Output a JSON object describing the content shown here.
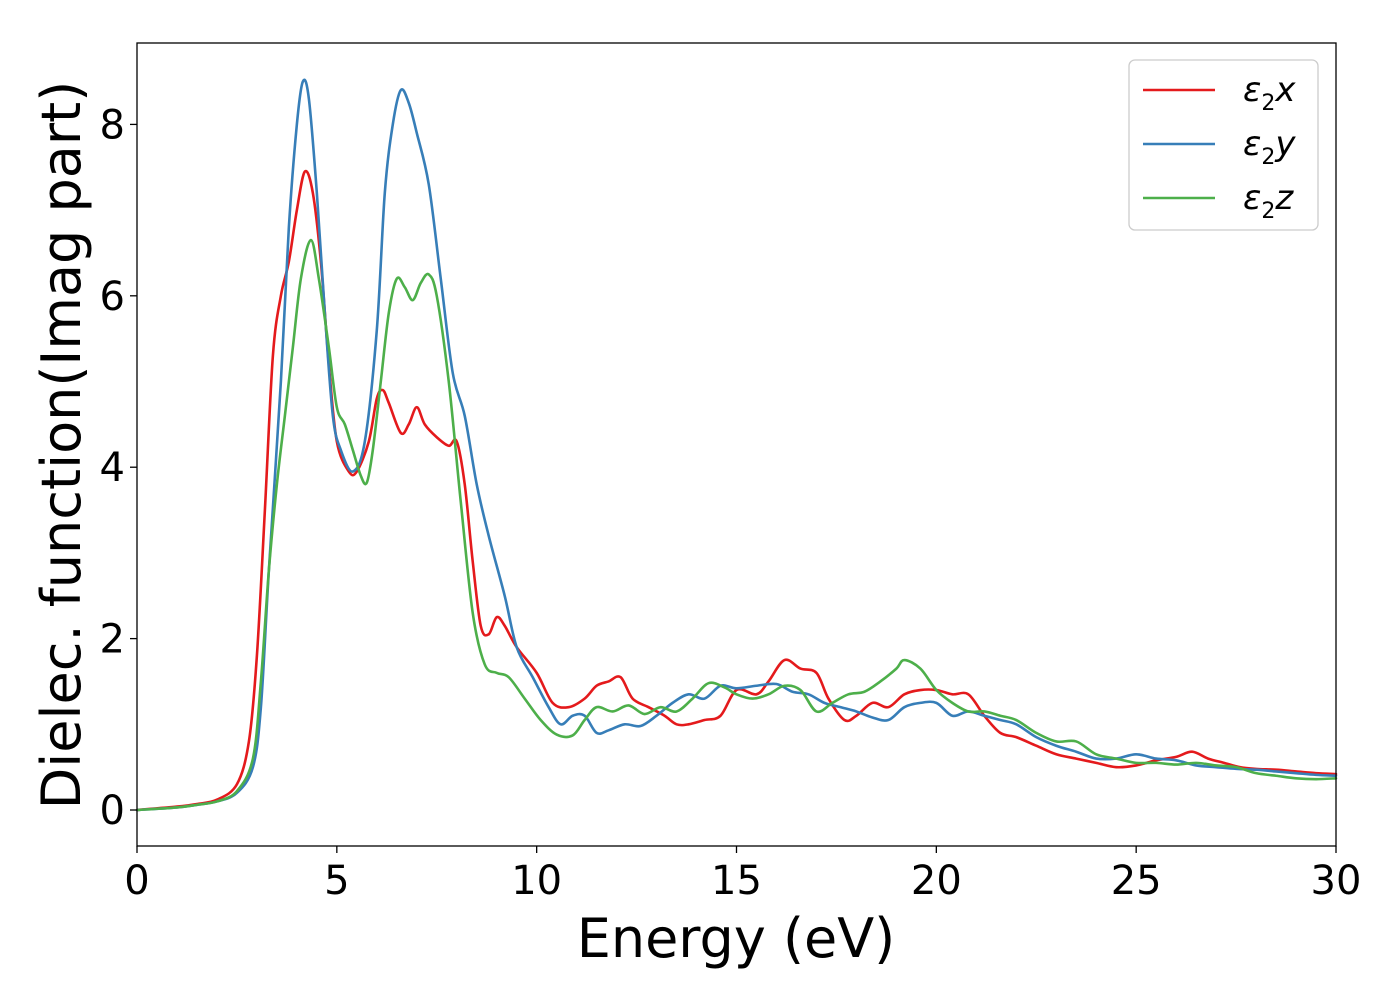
{
  "chart_data": {
    "type": "line",
    "xlabel": "Energy (eV)",
    "ylabel": "Dielec. function(Imag part)",
    "xlim": [
      0,
      30
    ],
    "ylim": [
      -0.42,
      8.95
    ],
    "xticks": [
      0,
      5,
      10,
      15,
      20,
      25,
      30
    ],
    "yticks": [
      0,
      2,
      4,
      6,
      8
    ],
    "grid": false,
    "legend_position": "top-right",
    "series": [
      {
        "name": "x",
        "label_base": "ε",
        "label_sub": "2",
        "label_var": "x",
        "color": "#e41a1c",
        "points": [
          [
            0,
            0
          ],
          [
            1,
            0.04
          ],
          [
            1.5,
            0.07
          ],
          [
            2,
            0.12
          ],
          [
            2.5,
            0.3
          ],
          [
            2.8,
            0.8
          ],
          [
            3.0,
            1.8
          ],
          [
            3.2,
            3.5
          ],
          [
            3.4,
            5.3
          ],
          [
            3.6,
            6.0
          ],
          [
            3.8,
            6.4
          ],
          [
            4.0,
            7.0
          ],
          [
            4.2,
            7.45
          ],
          [
            4.4,
            7.2
          ],
          [
            4.6,
            6.4
          ],
          [
            4.8,
            5.2
          ],
          [
            5.0,
            4.3
          ],
          [
            5.3,
            3.95
          ],
          [
            5.5,
            3.95
          ],
          [
            5.8,
            4.3
          ],
          [
            6.0,
            4.8
          ],
          [
            6.15,
            4.9
          ],
          [
            6.3,
            4.75
          ],
          [
            6.6,
            4.4
          ],
          [
            6.8,
            4.5
          ],
          [
            7.0,
            4.7
          ],
          [
            7.2,
            4.5
          ],
          [
            7.5,
            4.35
          ],
          [
            7.8,
            4.25
          ],
          [
            8.0,
            4.3
          ],
          [
            8.2,
            3.8
          ],
          [
            8.4,
            2.9
          ],
          [
            8.6,
            2.15
          ],
          [
            8.8,
            2.05
          ],
          [
            9.0,
            2.25
          ],
          [
            9.2,
            2.15
          ],
          [
            9.5,
            1.9
          ],
          [
            10.0,
            1.6
          ],
          [
            10.4,
            1.25
          ],
          [
            10.8,
            1.2
          ],
          [
            11.2,
            1.3
          ],
          [
            11.5,
            1.45
          ],
          [
            11.8,
            1.5
          ],
          [
            12.1,
            1.55
          ],
          [
            12.4,
            1.3
          ],
          [
            12.8,
            1.2
          ],
          [
            13.2,
            1.1
          ],
          [
            13.5,
            1.0
          ],
          [
            13.8,
            1.0
          ],
          [
            14.2,
            1.05
          ],
          [
            14.6,
            1.1
          ],
          [
            15.0,
            1.4
          ],
          [
            15.5,
            1.35
          ],
          [
            15.8,
            1.5
          ],
          [
            16.2,
            1.75
          ],
          [
            16.6,
            1.65
          ],
          [
            17.0,
            1.6
          ],
          [
            17.3,
            1.3
          ],
          [
            17.7,
            1.05
          ],
          [
            18.0,
            1.1
          ],
          [
            18.4,
            1.25
          ],
          [
            18.8,
            1.2
          ],
          [
            19.2,
            1.35
          ],
          [
            19.6,
            1.4
          ],
          [
            20.0,
            1.4
          ],
          [
            20.4,
            1.35
          ],
          [
            20.8,
            1.35
          ],
          [
            21.2,
            1.1
          ],
          [
            21.6,
            0.9
          ],
          [
            22.0,
            0.85
          ],
          [
            22.5,
            0.75
          ],
          [
            23.0,
            0.65
          ],
          [
            23.5,
            0.6
          ],
          [
            24.0,
            0.55
          ],
          [
            24.5,
            0.5
          ],
          [
            25.0,
            0.52
          ],
          [
            25.5,
            0.58
          ],
          [
            26.0,
            0.62
          ],
          [
            26.4,
            0.68
          ],
          [
            26.8,
            0.6
          ],
          [
            27.2,
            0.55
          ],
          [
            27.6,
            0.5
          ],
          [
            28.0,
            0.48
          ],
          [
            28.5,
            0.47
          ],
          [
            29.0,
            0.45
          ],
          [
            29.5,
            0.43
          ],
          [
            30.0,
            0.42
          ]
        ]
      },
      {
        "name": "y",
        "label_base": "ε",
        "label_sub": "2",
        "label_var": "y",
        "color": "#377eb8",
        "points": [
          [
            0,
            0
          ],
          [
            1,
            0.03
          ],
          [
            1.5,
            0.06
          ],
          [
            2,
            0.1
          ],
          [
            2.5,
            0.2
          ],
          [
            2.9,
            0.5
          ],
          [
            3.1,
            1.2
          ],
          [
            3.3,
            2.8
          ],
          [
            3.6,
            5.0
          ],
          [
            3.8,
            6.8
          ],
          [
            4.0,
            8.0
          ],
          [
            4.15,
            8.5
          ],
          [
            4.3,
            8.3
          ],
          [
            4.5,
            7.2
          ],
          [
            4.7,
            5.8
          ],
          [
            4.9,
            4.6
          ],
          [
            5.1,
            4.2
          ],
          [
            5.4,
            3.95
          ],
          [
            5.7,
            4.3
          ],
          [
            6.0,
            5.6
          ],
          [
            6.2,
            7.2
          ],
          [
            6.4,
            8.0
          ],
          [
            6.6,
            8.4
          ],
          [
            6.8,
            8.25
          ],
          [
            7.0,
            7.9
          ],
          [
            7.3,
            7.3
          ],
          [
            7.6,
            6.2
          ],
          [
            7.9,
            5.1
          ],
          [
            8.2,
            4.6
          ],
          [
            8.5,
            3.8
          ],
          [
            8.8,
            3.2
          ],
          [
            9.2,
            2.5
          ],
          [
            9.5,
            1.9
          ],
          [
            9.9,
            1.55
          ],
          [
            10.3,
            1.2
          ],
          [
            10.6,
            1.0
          ],
          [
            10.9,
            1.1
          ],
          [
            11.2,
            1.1
          ],
          [
            11.5,
            0.9
          ],
          [
            11.8,
            0.93
          ],
          [
            12.2,
            1.0
          ],
          [
            12.6,
            0.98
          ],
          [
            13.0,
            1.1
          ],
          [
            13.4,
            1.25
          ],
          [
            13.8,
            1.35
          ],
          [
            14.2,
            1.3
          ],
          [
            14.6,
            1.45
          ],
          [
            15.0,
            1.42
          ],
          [
            15.5,
            1.45
          ],
          [
            16.0,
            1.47
          ],
          [
            16.4,
            1.38
          ],
          [
            16.8,
            1.35
          ],
          [
            17.2,
            1.25
          ],
          [
            17.6,
            1.2
          ],
          [
            18.0,
            1.15
          ],
          [
            18.4,
            1.08
          ],
          [
            18.8,
            1.05
          ],
          [
            19.2,
            1.2
          ],
          [
            19.6,
            1.25
          ],
          [
            20.0,
            1.25
          ],
          [
            20.4,
            1.1
          ],
          [
            20.8,
            1.15
          ],
          [
            21.2,
            1.1
          ],
          [
            21.6,
            1.05
          ],
          [
            22.0,
            1.0
          ],
          [
            22.5,
            0.85
          ],
          [
            23.0,
            0.75
          ],
          [
            23.5,
            0.68
          ],
          [
            24.0,
            0.6
          ],
          [
            24.5,
            0.6
          ],
          [
            25.0,
            0.65
          ],
          [
            25.5,
            0.6
          ],
          [
            26.0,
            0.58
          ],
          [
            26.5,
            0.52
          ],
          [
            27.0,
            0.5
          ],
          [
            27.5,
            0.48
          ],
          [
            28.0,
            0.47
          ],
          [
            28.5,
            0.45
          ],
          [
            29.0,
            0.43
          ],
          [
            29.5,
            0.41
          ],
          [
            30.0,
            0.4
          ]
        ]
      },
      {
        "name": "z",
        "label_base": "ε",
        "label_sub": "2",
        "label_var": "z",
        "color": "#4daf4a",
        "points": [
          [
            0,
            0
          ],
          [
            1,
            0.03
          ],
          [
            1.5,
            0.06
          ],
          [
            2,
            0.1
          ],
          [
            2.5,
            0.22
          ],
          [
            2.9,
            0.6
          ],
          [
            3.1,
            1.5
          ],
          [
            3.3,
            2.8
          ],
          [
            3.5,
            3.8
          ],
          [
            3.7,
            4.6
          ],
          [
            3.9,
            5.4
          ],
          [
            4.1,
            6.2
          ],
          [
            4.35,
            6.65
          ],
          [
            4.55,
            6.2
          ],
          [
            4.8,
            5.4
          ],
          [
            5.0,
            4.7
          ],
          [
            5.2,
            4.5
          ],
          [
            5.4,
            4.2
          ],
          [
            5.6,
            3.9
          ],
          [
            5.75,
            3.82
          ],
          [
            5.9,
            4.2
          ],
          [
            6.1,
            5.0
          ],
          [
            6.3,
            5.8
          ],
          [
            6.5,
            6.2
          ],
          [
            6.7,
            6.1
          ],
          [
            6.9,
            5.95
          ],
          [
            7.1,
            6.15
          ],
          [
            7.3,
            6.25
          ],
          [
            7.5,
            6.0
          ],
          [
            7.8,
            5.0
          ],
          [
            8.1,
            3.6
          ],
          [
            8.4,
            2.3
          ],
          [
            8.7,
            1.7
          ],
          [
            9.0,
            1.6
          ],
          [
            9.3,
            1.55
          ],
          [
            9.7,
            1.3
          ],
          [
            10.1,
            1.05
          ],
          [
            10.5,
            0.88
          ],
          [
            10.9,
            0.87
          ],
          [
            11.2,
            1.05
          ],
          [
            11.5,
            1.2
          ],
          [
            11.9,
            1.15
          ],
          [
            12.3,
            1.22
          ],
          [
            12.7,
            1.12
          ],
          [
            13.1,
            1.2
          ],
          [
            13.5,
            1.15
          ],
          [
            13.9,
            1.3
          ],
          [
            14.3,
            1.48
          ],
          [
            14.7,
            1.43
          ],
          [
            15.0,
            1.35
          ],
          [
            15.4,
            1.3
          ],
          [
            15.8,
            1.35
          ],
          [
            16.2,
            1.45
          ],
          [
            16.6,
            1.4
          ],
          [
            17.0,
            1.15
          ],
          [
            17.4,
            1.25
          ],
          [
            17.8,
            1.35
          ],
          [
            18.2,
            1.38
          ],
          [
            18.6,
            1.5
          ],
          [
            19.0,
            1.65
          ],
          [
            19.2,
            1.75
          ],
          [
            19.6,
            1.65
          ],
          [
            20.0,
            1.4
          ],
          [
            20.4,
            1.25
          ],
          [
            20.8,
            1.15
          ],
          [
            21.2,
            1.15
          ],
          [
            21.6,
            1.1
          ],
          [
            22.0,
            1.05
          ],
          [
            22.5,
            0.9
          ],
          [
            23.0,
            0.8
          ],
          [
            23.5,
            0.8
          ],
          [
            24.0,
            0.65
          ],
          [
            24.5,
            0.6
          ],
          [
            25.0,
            0.55
          ],
          [
            25.5,
            0.55
          ],
          [
            26.0,
            0.53
          ],
          [
            26.5,
            0.55
          ],
          [
            27.0,
            0.52
          ],
          [
            27.5,
            0.5
          ],
          [
            28.0,
            0.43
          ],
          [
            28.5,
            0.4
          ],
          [
            29.0,
            0.37
          ],
          [
            29.5,
            0.36
          ],
          [
            30.0,
            0.37
          ]
        ]
      }
    ]
  }
}
